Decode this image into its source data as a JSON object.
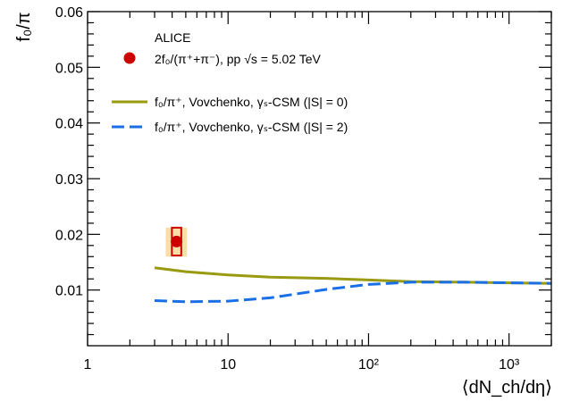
{
  "chart_data": {
    "type": "line",
    "experiment_label": "ALICE",
    "ylabel": "f₀/π",
    "xlabel": "⟨dN_ch/dη⟩",
    "xscale": "log",
    "xlim": [
      1,
      2000
    ],
    "ylim": [
      0,
      0.06
    ],
    "grid": false,
    "legend_position": "top-left",
    "x_ticks": [
      {
        "value": 1,
        "label": "1"
      },
      {
        "value": 10,
        "label": "10"
      },
      {
        "value": 100,
        "label": "10²"
      },
      {
        "value": 1000,
        "label": "10³"
      }
    ],
    "y_ticks": [
      {
        "value": 0.01,
        "label": "0.01"
      },
      {
        "value": 0.02,
        "label": "0.02"
      },
      {
        "value": 0.03,
        "label": "0.03"
      },
      {
        "value": 0.04,
        "label": "0.04"
      },
      {
        "value": 0.05,
        "label": "0.05"
      },
      {
        "value": 0.06,
        "label": "0.06"
      }
    ],
    "data_point": {
      "name": "2f₀/(π⁺+π⁻), pp √s = 5.02 TeV",
      "x": 4.3,
      "y": 0.0187,
      "x_sys": [
        3.6,
        5.1
      ],
      "y_sys": [
        0.016,
        0.0212
      ],
      "y_stat_box": [
        0.0162,
        0.0212
      ],
      "color": "#cc0000",
      "sys_color": "#f8dfa8"
    },
    "series": [
      {
        "name": "f₀/π⁺, Vovchenko, γₛ-CSM (|S| = 0)",
        "color": "#9a9a12",
        "style": "solid",
        "x": [
          3,
          5,
          10,
          20,
          50,
          100,
          200,
          500,
          1000,
          2000
        ],
        "y": [
          0.014,
          0.0133,
          0.0127,
          0.0123,
          0.0121,
          0.0118,
          0.0115,
          0.0114,
          0.0113,
          0.0112
        ]
      },
      {
        "name": "f₀/π⁺, Vovchenko, γₛ-CSM (|S| = 2)",
        "color": "#1a6ee6",
        "style": "dashed",
        "x": [
          3,
          5,
          10,
          20,
          50,
          100,
          200,
          500,
          1000,
          2000
        ],
        "y": [
          0.0081,
          0.0079,
          0.008,
          0.0086,
          0.0101,
          0.011,
          0.0114,
          0.0114,
          0.0113,
          0.0112
        ]
      }
    ]
  }
}
